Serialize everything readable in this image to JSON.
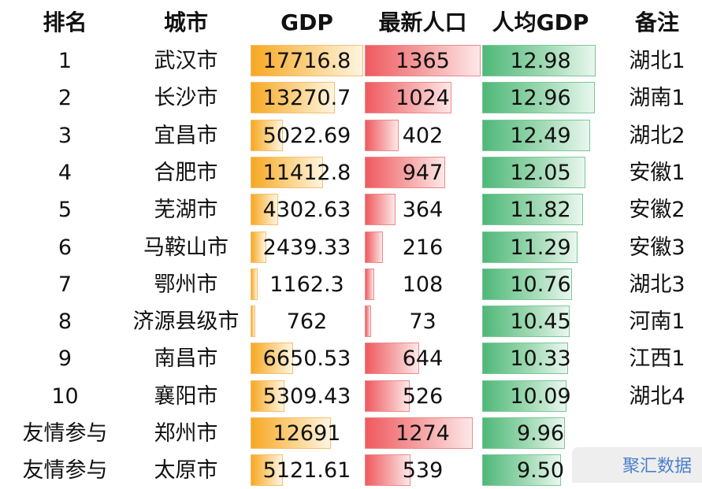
{
  "headers": {
    "rank": "排名",
    "city": "城市",
    "gdp": "GDP",
    "population": "最新人口",
    "per_capita": "人均GDP",
    "note": "备注"
  },
  "colors": {
    "gdp_bar": "#f7a823",
    "population_bar": "#ef5a5f",
    "per_capita_bar": "#4fb878"
  },
  "rows": [
    {
      "rank": "1",
      "city": "武汉市",
      "gdp": "17716.8",
      "population": "1365",
      "per_capita": "12.98",
      "note": "湖北1"
    },
    {
      "rank": "2",
      "city": "长沙市",
      "gdp": "13270.7",
      "population": "1024",
      "per_capita": "12.96",
      "note": "湖南1"
    },
    {
      "rank": "3",
      "city": "宜昌市",
      "gdp": "5022.69",
      "population": "402",
      "per_capita": "12.49",
      "note": "湖北2"
    },
    {
      "rank": "4",
      "city": "合肥市",
      "gdp": "11412.8",
      "population": "947",
      "per_capita": "12.05",
      "note": "安徽1"
    },
    {
      "rank": "5",
      "city": "芜湖市",
      "gdp": "4302.63",
      "population": "364",
      "per_capita": "11.82",
      "note": "安徽2"
    },
    {
      "rank": "6",
      "city": "马鞍山市",
      "gdp": "2439.33",
      "population": "216",
      "per_capita": "11.29",
      "note": "安徽3"
    },
    {
      "rank": "7",
      "city": "鄂州市",
      "gdp": "1162.3",
      "population": "108",
      "per_capita": "10.76",
      "note": "湖北3"
    },
    {
      "rank": "8",
      "city": "济源县级市",
      "gdp": "762",
      "population": "73",
      "per_capita": "10.45",
      "note": "河南1"
    },
    {
      "rank": "9",
      "city": "南昌市",
      "gdp": "6650.53",
      "population": "644",
      "per_capita": "10.33",
      "note": "江西1"
    },
    {
      "rank": "10",
      "city": "襄阳市",
      "gdp": "5309.43",
      "population": "526",
      "per_capita": "10.09",
      "note": "湖北4"
    },
    {
      "rank": "友情参与",
      "city": "郑州市",
      "gdp": "12691",
      "population": "1274",
      "per_capita": "9.96",
      "note": ""
    },
    {
      "rank": "友情参与",
      "city": "太原市",
      "gdp": "5121.61",
      "population": "539",
      "per_capita": "9.50",
      "note": ""
    }
  ],
  "watermark": "聚汇数据"
}
